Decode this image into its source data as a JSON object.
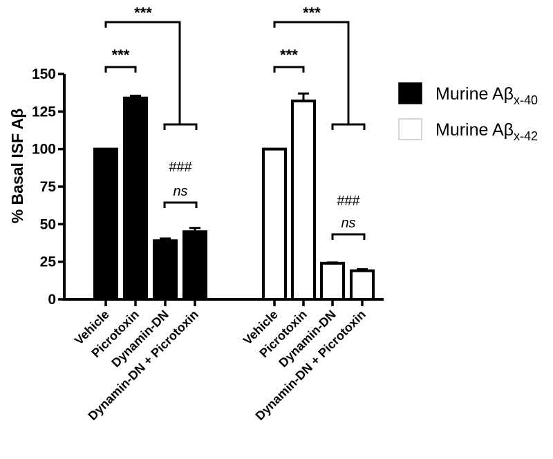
{
  "chart_data": {
    "type": "bar",
    "title": "",
    "xlabel": "",
    "ylabel": "% Basal ISF Aβ",
    "ylim": [
      0,
      150
    ],
    "yticks": [
      "0",
      "25",
      "50",
      "75",
      "100",
      "125",
      "150"
    ],
    "categories": [
      "Vehicle",
      "Picrotoxin",
      "Dynamin-DN",
      "Dynamin-DN + Picrotoxin"
    ],
    "series": [
      {
        "name": "Murine Aβx-40",
        "legend_main": "Murine Aβ",
        "legend_sub": "x-40",
        "fill": "#000000",
        "values": [
          100,
          134,
          39,
          45
        ],
        "errors": [
          0,
          1.5,
          1.5,
          2.5
        ]
      },
      {
        "name": "Murine Aβx-42",
        "legend_main": "Murine Aβ",
        "legend_sub": "x-42",
        "fill": "#ffffff",
        "values": [
          100,
          132,
          24,
          19
        ],
        "errors": [
          0,
          5,
          0.5,
          1
        ]
      }
    ],
    "annotations": {
      "star_label": "***",
      "hash_label": "###",
      "ns_label": "ns"
    },
    "colors": {
      "axis": "#000000",
      "bar_dark": "#000000",
      "bar_light": "#ffffff"
    }
  }
}
